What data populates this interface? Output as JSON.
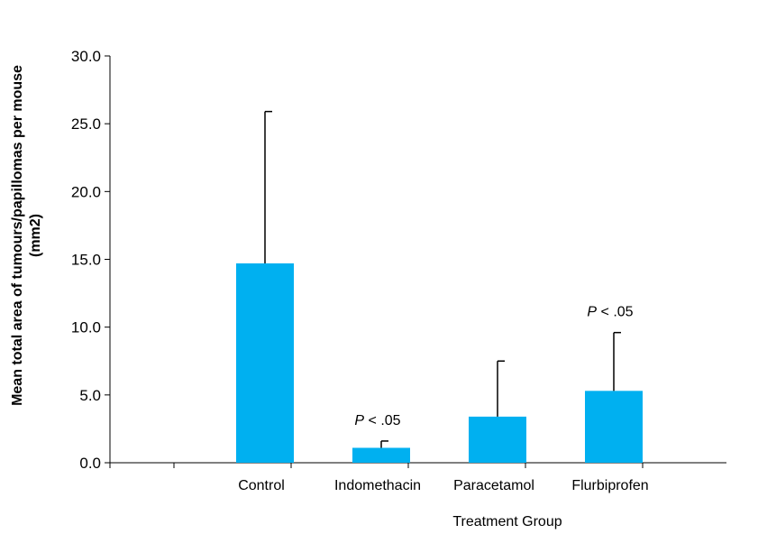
{
  "chart_data": {
    "type": "bar",
    "title": "",
    "xlabel": "Treatment Group",
    "ylabel_line1": "Mean total area of tumours/papillomas per mouse",
    "ylabel_line2": "(mm2)",
    "ylim": [
      0,
      30
    ],
    "yticks": [
      "0.0",
      "5.0",
      "10.0",
      "15.0",
      "20.0",
      "25.0",
      "30.0"
    ],
    "categories": [
      "Control",
      "Indomethacin",
      "Paracetamol",
      "Flurbiprofen"
    ],
    "values": [
      14.7,
      1.1,
      3.4,
      5.3
    ],
    "error_upper": [
      25.9,
      1.6,
      7.5,
      9.6
    ],
    "bar_color": "#00B0F0",
    "grid": false,
    "annotations": [
      {
        "category": "Indomethacin",
        "p_symbol": "P",
        "text": " < .05"
      },
      {
        "category": "Flurbiprofen",
        "p_symbol": "P",
        "text": " < .05"
      }
    ]
  }
}
